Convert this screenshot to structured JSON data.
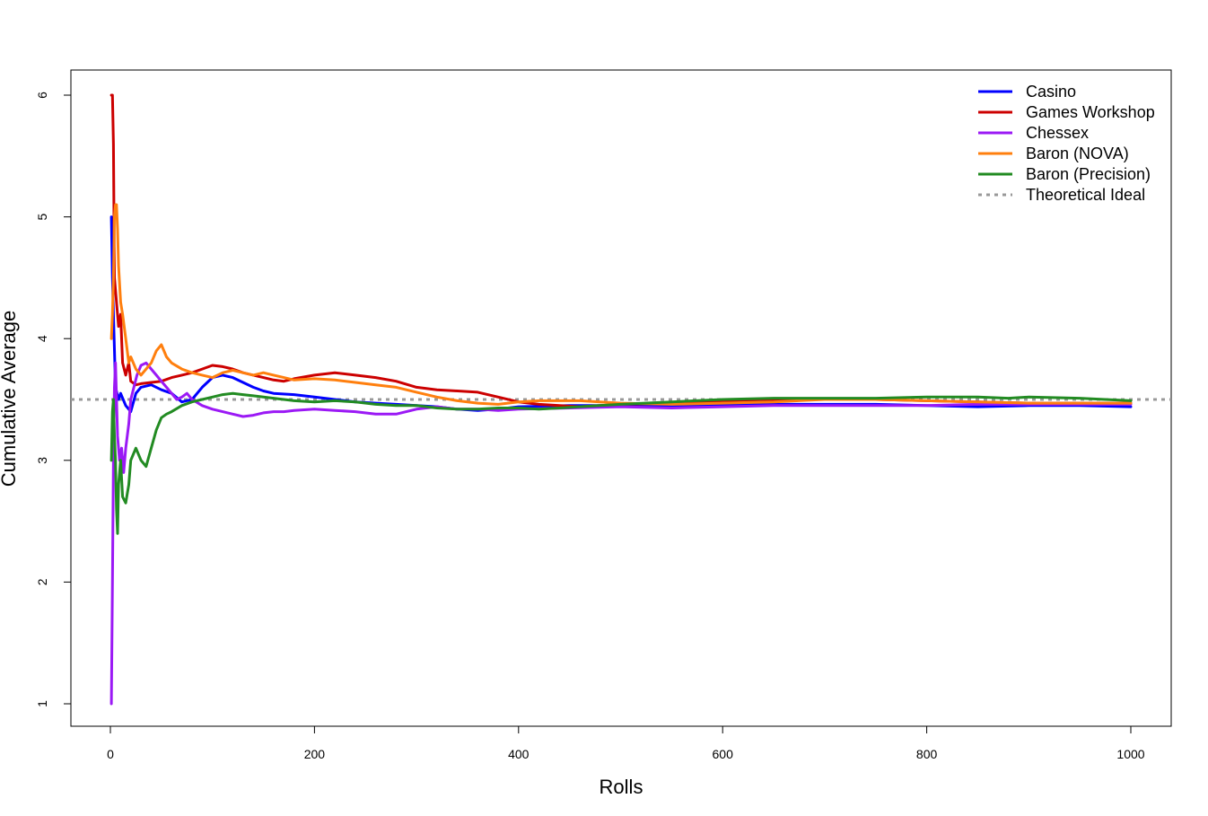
{
  "chart_data": {
    "type": "line",
    "title": "",
    "xlabel": "Rolls",
    "ylabel": "Cumulative Average",
    "xlim": [
      0,
      1000
    ],
    "ylim": [
      1,
      6
    ],
    "xticks": [
      0,
      200,
      400,
      600,
      800,
      1000
    ],
    "yticks": [
      1,
      2,
      3,
      4,
      5,
      6
    ],
    "grid": false,
    "legend_position": "top-right",
    "reference_line": {
      "name": "Theoretical Ideal",
      "y": 3.5,
      "color": "#999999",
      "style": "dashed"
    },
    "series": [
      {
        "name": "Casino",
        "color": "#0000ff",
        "points": [
          [
            1,
            5.0
          ],
          [
            2,
            4.5
          ],
          [
            3,
            4.2
          ],
          [
            5,
            3.6
          ],
          [
            8,
            3.5
          ],
          [
            10,
            3.55
          ],
          [
            15,
            3.45
          ],
          [
            20,
            3.4
          ],
          [
            25,
            3.55
          ],
          [
            30,
            3.6
          ],
          [
            40,
            3.62
          ],
          [
            50,
            3.58
          ],
          [
            60,
            3.55
          ],
          [
            70,
            3.48
          ],
          [
            80,
            3.5
          ],
          [
            90,
            3.6
          ],
          [
            100,
            3.68
          ],
          [
            110,
            3.7
          ],
          [
            120,
            3.68
          ],
          [
            130,
            3.64
          ],
          [
            140,
            3.6
          ],
          [
            150,
            3.57
          ],
          [
            160,
            3.55
          ],
          [
            180,
            3.54
          ],
          [
            200,
            3.52
          ],
          [
            220,
            3.5
          ],
          [
            240,
            3.48
          ],
          [
            260,
            3.47
          ],
          [
            280,
            3.46
          ],
          [
            300,
            3.45
          ],
          [
            320,
            3.44
          ],
          [
            340,
            3.42
          ],
          [
            360,
            3.41
          ],
          [
            380,
            3.42
          ],
          [
            400,
            3.44
          ],
          [
            450,
            3.45
          ],
          [
            500,
            3.45
          ],
          [
            550,
            3.44
          ],
          [
            600,
            3.45
          ],
          [
            650,
            3.46
          ],
          [
            700,
            3.46
          ],
          [
            750,
            3.46
          ],
          [
            800,
            3.45
          ],
          [
            850,
            3.44
          ],
          [
            900,
            3.45
          ],
          [
            950,
            3.45
          ],
          [
            1000,
            3.44
          ]
        ]
      },
      {
        "name": "Games Workshop",
        "color": "#cc0000",
        "points": [
          [
            1,
            6.0
          ],
          [
            2,
            6.0
          ],
          [
            3,
            5.6
          ],
          [
            4,
            4.5
          ],
          [
            6,
            4.3
          ],
          [
            8,
            4.1
          ],
          [
            10,
            4.2
          ],
          [
            12,
            3.8
          ],
          [
            15,
            3.7
          ],
          [
            18,
            3.8
          ],
          [
            20,
            3.65
          ],
          [
            25,
            3.62
          ],
          [
            30,
            3.63
          ],
          [
            40,
            3.64
          ],
          [
            50,
            3.65
          ],
          [
            60,
            3.68
          ],
          [
            70,
            3.7
          ],
          [
            80,
            3.72
          ],
          [
            90,
            3.75
          ],
          [
            100,
            3.78
          ],
          [
            110,
            3.77
          ],
          [
            120,
            3.75
          ],
          [
            130,
            3.72
          ],
          [
            140,
            3.7
          ],
          [
            150,
            3.68
          ],
          [
            160,
            3.66
          ],
          [
            170,
            3.65
          ],
          [
            180,
            3.67
          ],
          [
            200,
            3.7
          ],
          [
            220,
            3.72
          ],
          [
            240,
            3.7
          ],
          [
            260,
            3.68
          ],
          [
            280,
            3.65
          ],
          [
            300,
            3.6
          ],
          [
            320,
            3.58
          ],
          [
            340,
            3.57
          ],
          [
            360,
            3.56
          ],
          [
            380,
            3.52
          ],
          [
            400,
            3.48
          ],
          [
            420,
            3.46
          ],
          [
            440,
            3.45
          ],
          [
            460,
            3.44
          ],
          [
            480,
            3.45
          ],
          [
            500,
            3.46
          ],
          [
            550,
            3.47
          ],
          [
            600,
            3.49
          ],
          [
            650,
            3.5
          ],
          [
            700,
            3.5
          ],
          [
            750,
            3.5
          ],
          [
            800,
            3.49
          ],
          [
            850,
            3.48
          ],
          [
            900,
            3.47
          ],
          [
            950,
            3.47
          ],
          [
            1000,
            3.47
          ]
        ]
      },
      {
        "name": "Chessex",
        "color": "#9b19f5",
        "points": [
          [
            1,
            1.0
          ],
          [
            2,
            2.0
          ],
          [
            3,
            3.0
          ],
          [
            4,
            3.6
          ],
          [
            5,
            3.8
          ],
          [
            7,
            3.2
          ],
          [
            9,
            3.0
          ],
          [
            11,
            3.1
          ],
          [
            13,
            2.9
          ],
          [
            15,
            3.1
          ],
          [
            18,
            3.3
          ],
          [
            20,
            3.5
          ],
          [
            23,
            3.6
          ],
          [
            26,
            3.7
          ],
          [
            30,
            3.78
          ],
          [
            35,
            3.8
          ],
          [
            40,
            3.75
          ],
          [
            45,
            3.7
          ],
          [
            50,
            3.65
          ],
          [
            55,
            3.6
          ],
          [
            60,
            3.55
          ],
          [
            65,
            3.5
          ],
          [
            70,
            3.52
          ],
          [
            75,
            3.55
          ],
          [
            80,
            3.5
          ],
          [
            90,
            3.45
          ],
          [
            100,
            3.42
          ],
          [
            110,
            3.4
          ],
          [
            120,
            3.38
          ],
          [
            130,
            3.36
          ],
          [
            140,
            3.37
          ],
          [
            150,
            3.39
          ],
          [
            160,
            3.4
          ],
          [
            170,
            3.4
          ],
          [
            180,
            3.41
          ],
          [
            200,
            3.42
          ],
          [
            220,
            3.41
          ],
          [
            240,
            3.4
          ],
          [
            260,
            3.38
          ],
          [
            280,
            3.38
          ],
          [
            300,
            3.42
          ],
          [
            320,
            3.44
          ],
          [
            340,
            3.42
          ],
          [
            360,
            3.42
          ],
          [
            380,
            3.41
          ],
          [
            400,
            3.42
          ],
          [
            450,
            3.43
          ],
          [
            500,
            3.44
          ],
          [
            550,
            3.43
          ],
          [
            600,
            3.44
          ],
          [
            650,
            3.45
          ],
          [
            700,
            3.45
          ],
          [
            750,
            3.45
          ],
          [
            800,
            3.45
          ],
          [
            850,
            3.46
          ],
          [
            900,
            3.46
          ],
          [
            950,
            3.46
          ],
          [
            1000,
            3.46
          ]
        ]
      },
      {
        "name": "Baron (NOVA)",
        "color": "#ff7f0e",
        "points": [
          [
            1,
            4.0
          ],
          [
            2,
            4.2
          ],
          [
            3,
            4.5
          ],
          [
            4,
            5.0
          ],
          [
            5,
            5.1
          ],
          [
            6,
            5.1
          ],
          [
            7,
            4.9
          ],
          [
            8,
            4.6
          ],
          [
            10,
            4.3
          ],
          [
            12,
            4.2
          ],
          [
            15,
            4.0
          ],
          [
            18,
            3.8
          ],
          [
            20,
            3.85
          ],
          [
            25,
            3.75
          ],
          [
            30,
            3.7
          ],
          [
            35,
            3.75
          ],
          [
            40,
            3.8
          ],
          [
            45,
            3.9
          ],
          [
            50,
            3.95
          ],
          [
            55,
            3.85
          ],
          [
            60,
            3.8
          ],
          [
            70,
            3.75
          ],
          [
            80,
            3.72
          ],
          [
            90,
            3.7
          ],
          [
            100,
            3.68
          ],
          [
            110,
            3.72
          ],
          [
            120,
            3.74
          ],
          [
            130,
            3.72
          ],
          [
            140,
            3.7
          ],
          [
            150,
            3.72
          ],
          [
            160,
            3.7
          ],
          [
            170,
            3.68
          ],
          [
            180,
            3.66
          ],
          [
            200,
            3.67
          ],
          [
            220,
            3.66
          ],
          [
            240,
            3.64
          ],
          [
            260,
            3.62
          ],
          [
            280,
            3.6
          ],
          [
            300,
            3.56
          ],
          [
            320,
            3.52
          ],
          [
            340,
            3.49
          ],
          [
            360,
            3.47
          ],
          [
            380,
            3.46
          ],
          [
            400,
            3.48
          ],
          [
            420,
            3.49
          ],
          [
            440,
            3.49
          ],
          [
            460,
            3.49
          ],
          [
            480,
            3.48
          ],
          [
            500,
            3.47
          ],
          [
            550,
            3.46
          ],
          [
            600,
            3.47
          ],
          [
            650,
            3.48
          ],
          [
            700,
            3.5
          ],
          [
            750,
            3.5
          ],
          [
            800,
            3.49
          ],
          [
            850,
            3.48
          ],
          [
            900,
            3.47
          ],
          [
            950,
            3.47
          ],
          [
            1000,
            3.47
          ]
        ]
      },
      {
        "name": "Baron (Precision)",
        "color": "#228b22",
        "points": [
          [
            1,
            3.0
          ],
          [
            2,
            3.4
          ],
          [
            3,
            3.5
          ],
          [
            4,
            3.2
          ],
          [
            5,
            3.0
          ],
          [
            6,
            2.6
          ],
          [
            7,
            2.4
          ],
          [
            8,
            2.8
          ],
          [
            10,
            3.0
          ],
          [
            12,
            2.7
          ],
          [
            15,
            2.65
          ],
          [
            18,
            2.8
          ],
          [
            20,
            3.0
          ],
          [
            25,
            3.1
          ],
          [
            30,
            3.0
          ],
          [
            35,
            2.95
          ],
          [
            40,
            3.1
          ],
          [
            45,
            3.25
          ],
          [
            50,
            3.35
          ],
          [
            55,
            3.38
          ],
          [
            60,
            3.4
          ],
          [
            70,
            3.45
          ],
          [
            80,
            3.48
          ],
          [
            90,
            3.5
          ],
          [
            100,
            3.52
          ],
          [
            110,
            3.54
          ],
          [
            120,
            3.55
          ],
          [
            130,
            3.54
          ],
          [
            140,
            3.53
          ],
          [
            150,
            3.52
          ],
          [
            160,
            3.51
          ],
          [
            170,
            3.5
          ],
          [
            180,
            3.49
          ],
          [
            200,
            3.48
          ],
          [
            220,
            3.49
          ],
          [
            240,
            3.48
          ],
          [
            260,
            3.46
          ],
          [
            280,
            3.45
          ],
          [
            300,
            3.45
          ],
          [
            320,
            3.43
          ],
          [
            340,
            3.42
          ],
          [
            360,
            3.42
          ],
          [
            380,
            3.43
          ],
          [
            400,
            3.43
          ],
          [
            420,
            3.42
          ],
          [
            440,
            3.43
          ],
          [
            460,
            3.44
          ],
          [
            480,
            3.45
          ],
          [
            500,
            3.46
          ],
          [
            550,
            3.48
          ],
          [
            600,
            3.5
          ],
          [
            650,
            3.51
          ],
          [
            700,
            3.51
          ],
          [
            750,
            3.51
          ],
          [
            800,
            3.52
          ],
          [
            850,
            3.52
          ],
          [
            880,
            3.51
          ],
          [
            900,
            3.52
          ],
          [
            950,
            3.51
          ],
          [
            1000,
            3.49
          ]
        ]
      }
    ]
  }
}
